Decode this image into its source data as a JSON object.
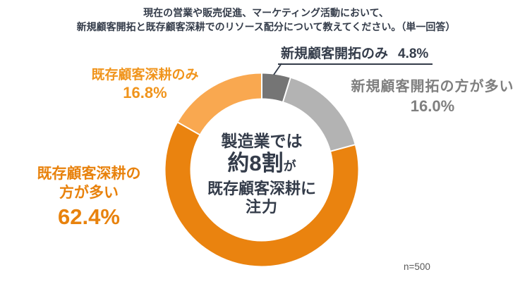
{
  "title": {
    "line1": "現在の営業や販売促進、マーケティング活動において、",
    "line2": "新規顧客開拓と既存顧客深耕でのリソース配分について教えてください。（単一回答）"
  },
  "chart_data": {
    "type": "pie",
    "variant": "donut",
    "title": "現在の営業や販売促進、マーケティング活動において、新規顧客開拓と既存顧客深耕でのリソース配分について教えてください。（単一回答）",
    "unit": "%",
    "n": 500,
    "start_angle_deg": 0,
    "direction": "clockwise",
    "segments": [
      {
        "label": "新規顧客開拓のみ",
        "value": 4.8,
        "color": "#757575"
      },
      {
        "label": "新規顧客開拓の方が多い",
        "value": 16.0,
        "color": "#B3B3B3"
      },
      {
        "label": "既存顧客深耕の方が多い",
        "value": 62.4,
        "color": "#EA830F"
      },
      {
        "label": "既存顧客深耕のみ",
        "value": 16.8,
        "color": "#F9A850"
      }
    ],
    "annotation": "製造業では約8割が既存顧客深耕に注力"
  },
  "callouts": {
    "new_only": {
      "label": "新規顧客開拓のみ",
      "value": "4.8%"
    },
    "new_more": {
      "label": "新規顧客開拓の方が多い",
      "value": "16.0%"
    },
    "exist_only": {
      "label": "既存顧客深耕のみ",
      "value": "16.8%"
    },
    "exist_more": {
      "label_line1": "既存顧客深耕の",
      "label_line2": "方が多い",
      "value": "62.4%"
    }
  },
  "center_message": {
    "line1": "製造業では",
    "emphasis": "約8割",
    "emphasis_suffix": "が",
    "line3": "既存顧客深耕に",
    "line4": "注力"
  },
  "footnote": "n=500",
  "colors": {
    "dark_orange": "#EA830F",
    "light_orange": "#F9A850",
    "dark_gray": "#757575",
    "light_gray": "#B3B3B3",
    "navy_text": "#343C4A",
    "gray_label": "#7F7F7F"
  }
}
